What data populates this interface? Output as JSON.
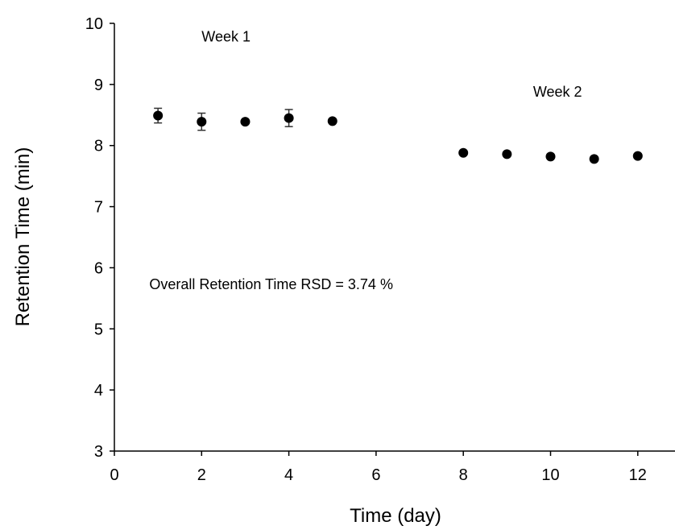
{
  "chart_data": {
    "type": "scatter",
    "title": "",
    "xlabel": "Time (day)",
    "ylabel": "Retention Time (min)",
    "xlim": [
      0,
      13
    ],
    "ylim": [
      3,
      10
    ],
    "xticks": [
      0,
      2,
      4,
      6,
      8,
      10,
      12
    ],
    "yticks": [
      3,
      4,
      5,
      6,
      7,
      8,
      9,
      10
    ],
    "grid": false,
    "marker_color": "#000000",
    "series": [
      {
        "points": [
          {
            "x": 1,
            "y": 8.49,
            "err": 0.12
          },
          {
            "x": 2,
            "y": 8.39,
            "err": 0.14
          },
          {
            "x": 3,
            "y": 8.39,
            "err": 0
          },
          {
            "x": 4,
            "y": 8.45,
            "err": 0.14
          },
          {
            "x": 5,
            "y": 8.4,
            "err": 0
          },
          {
            "x": 8,
            "y": 7.88,
            "err": 0
          },
          {
            "x": 9,
            "y": 7.86,
            "err": 0
          },
          {
            "x": 10,
            "y": 7.82,
            "err": 0
          },
          {
            "x": 11,
            "y": 7.78,
            "err": 0
          },
          {
            "x": 12,
            "y": 7.83,
            "err": 0
          }
        ]
      }
    ],
    "annotations": [
      {
        "text": "Week 1",
        "x": 2.0,
        "y": 9.7
      },
      {
        "text": "Week 2",
        "x": 9.6,
        "y": 8.8
      },
      {
        "text": "Overall Retention Time RSD = 3.74 %",
        "x": 0.8,
        "y": 5.65
      }
    ]
  }
}
